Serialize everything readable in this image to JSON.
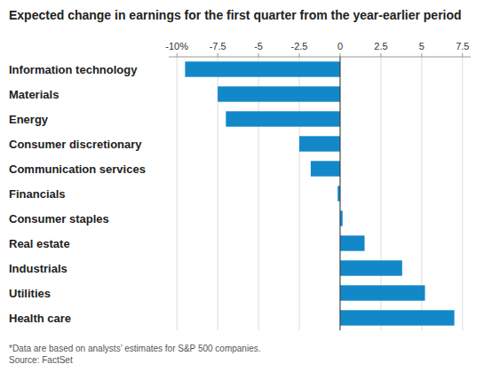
{
  "chart_data": {
    "type": "bar",
    "orientation": "horizontal",
    "title": "Expected change in earnings for the first quarter from the year-earlier period",
    "categories": [
      "Information technology",
      "Materials",
      "Energy",
      "Consumer discretionary",
      "Communication services",
      "Financials",
      "Consumer staples",
      "Real estate",
      "Industrials",
      "Utilities",
      "Health care"
    ],
    "values": [
      -9.5,
      -7.5,
      -7.0,
      -2.5,
      -1.8,
      -0.15,
      0.15,
      1.5,
      3.8,
      5.2,
      7.0
    ],
    "color": "#1388c8",
    "xlim": [
      -10.5,
      8.0
    ],
    "xticks": [
      {
        "value": -10,
        "label": "-10%"
      },
      -7.5,
      -5,
      -2.5,
      0,
      2.5,
      5,
      7.5
    ],
    "grid": true,
    "footnote": "*Data are based on analysts’ estimates for S&P 500 companies.\nSource: FactSet"
  }
}
